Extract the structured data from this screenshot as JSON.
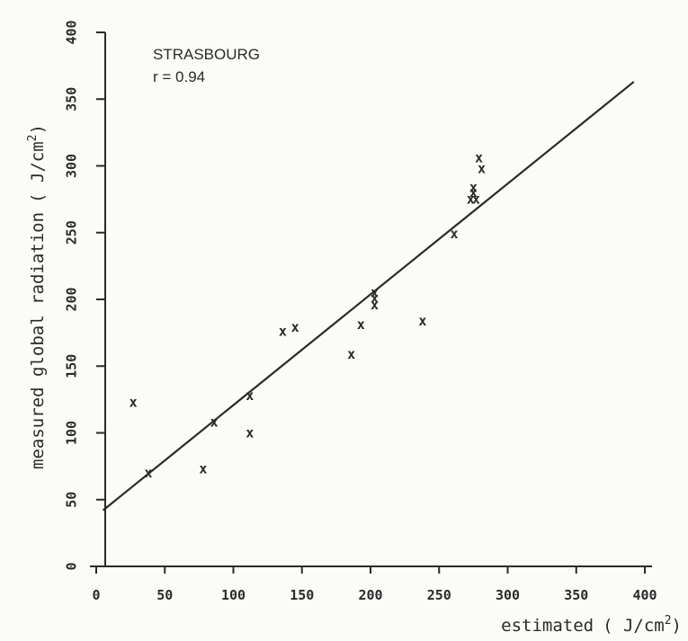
{
  "chart_data": {
    "type": "scatter",
    "title": "STRASBOURG",
    "annotation": "r = 0.94",
    "xlabel": "estimated",
    "xlabel_unit_open": "( J/cm",
    "xlabel_unit_sup": "2",
    "xlabel_unit_close": ")",
    "ylabel": "measured global radiation",
    "ylabel_unit_open": "( J/cm",
    "ylabel_unit_sup": "2",
    "ylabel_unit_close": ")",
    "xlim": [
      0,
      400
    ],
    "ylim": [
      0,
      400
    ],
    "xticks": [
      0,
      50,
      100,
      150,
      200,
      250,
      300,
      350,
      400
    ],
    "yticks": [
      0,
      50,
      100,
      150,
      200,
      250,
      300,
      350,
      400
    ],
    "tick_labels": [
      "0",
      "50",
      "100",
      "150",
      "200",
      "250",
      "300",
      "350",
      "400"
    ],
    "marker": "x",
    "grid": false,
    "points": [
      {
        "x": 27,
        "y": 123
      },
      {
        "x": 38,
        "y": 70
      },
      {
        "x": 78,
        "y": 73
      },
      {
        "x": 86,
        "y": 108
      },
      {
        "x": 112,
        "y": 128
      },
      {
        "x": 112,
        "y": 100
      },
      {
        "x": 136,
        "y": 176
      },
      {
        "x": 145,
        "y": 179
      },
      {
        "x": 186,
        "y": 159
      },
      {
        "x": 193,
        "y": 181
      },
      {
        "x": 203,
        "y": 196
      },
      {
        "x": 203,
        "y": 201
      },
      {
        "x": 203,
        "y": 205
      },
      {
        "x": 238,
        "y": 184
      },
      {
        "x": 261,
        "y": 249
      },
      {
        "x": 273,
        "y": 275
      },
      {
        "x": 275,
        "y": 280
      },
      {
        "x": 275,
        "y": 284
      },
      {
        "x": 277,
        "y": 275
      },
      {
        "x": 279,
        "y": 306
      },
      {
        "x": 281,
        "y": 298
      }
    ],
    "regression_line": {
      "x1": 5,
      "y1": 42,
      "x2": 392,
      "y2": 363
    }
  }
}
